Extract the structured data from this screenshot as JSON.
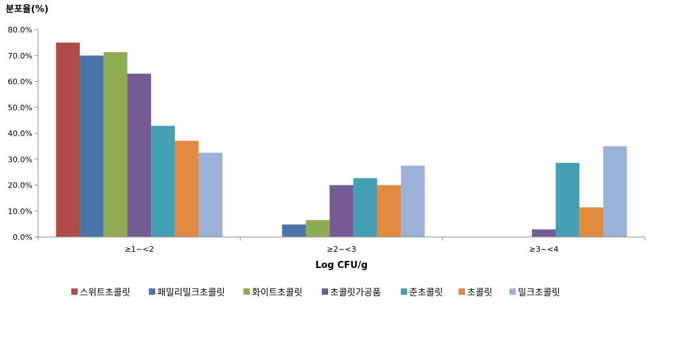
{
  "chart_data": {
    "type": "bar",
    "ylabel": "분포율(%)",
    "xlabel": "Log CFU/g",
    "ylim": [
      0,
      80
    ],
    "y_ticks": [
      "0.0%",
      "10.0%",
      "20.0%",
      "30.0%",
      "40.0%",
      "50.0%",
      "60.0%",
      "70.0%",
      "80.0%"
    ],
    "y_tick_values": [
      0,
      10,
      20,
      30,
      40,
      50,
      60,
      70,
      80
    ],
    "categories": [
      "≥1~<2",
      "≥2~<3",
      "≥3~<4"
    ],
    "grid": false,
    "legend_position": "bottom",
    "series": [
      {
        "name": "스위트초콜릿",
        "color": "#b04b47",
        "values": [
          75.0,
          0,
          0
        ]
      },
      {
        "name": "패밀리밀크초콜릿",
        "color": "#4a74aa",
        "values": [
          70.0,
          4.8,
          0
        ]
      },
      {
        "name": "화이트초콜릿",
        "color": "#8fac52",
        "values": [
          71.3,
          6.5,
          0
        ]
      },
      {
        "name": "초콜릿가공품",
        "color": "#765b93",
        "values": [
          63.0,
          20.0,
          2.9
        ]
      },
      {
        "name": "준초콜릿",
        "color": "#45a0b5",
        "values": [
          42.9,
          22.7,
          28.6
        ]
      },
      {
        "name": "초콜릿",
        "color": "#e08b40",
        "values": [
          37.1,
          20.0,
          11.4
        ]
      },
      {
        "name": "밀크초콜릿",
        "color": "#9bb2d8",
        "values": [
          32.5,
          27.5,
          35.0
        ]
      }
    ]
  }
}
